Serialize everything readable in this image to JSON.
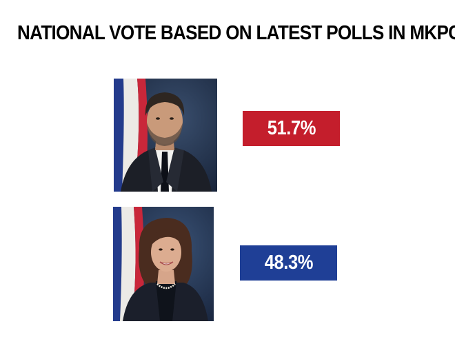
{
  "title": "NATIONAL VOTE BASED ON LATEST POLLS IN MKPC",
  "candidates": [
    {
      "portrait": "male-candidate-portrait",
      "percent": "51.7%",
      "percent_value": 51.7,
      "color": "#c41e2c"
    },
    {
      "portrait": "female-candidate-portrait",
      "percent": "48.3%",
      "percent_value": 48.3,
      "color": "#1f3f96"
    }
  ]
}
